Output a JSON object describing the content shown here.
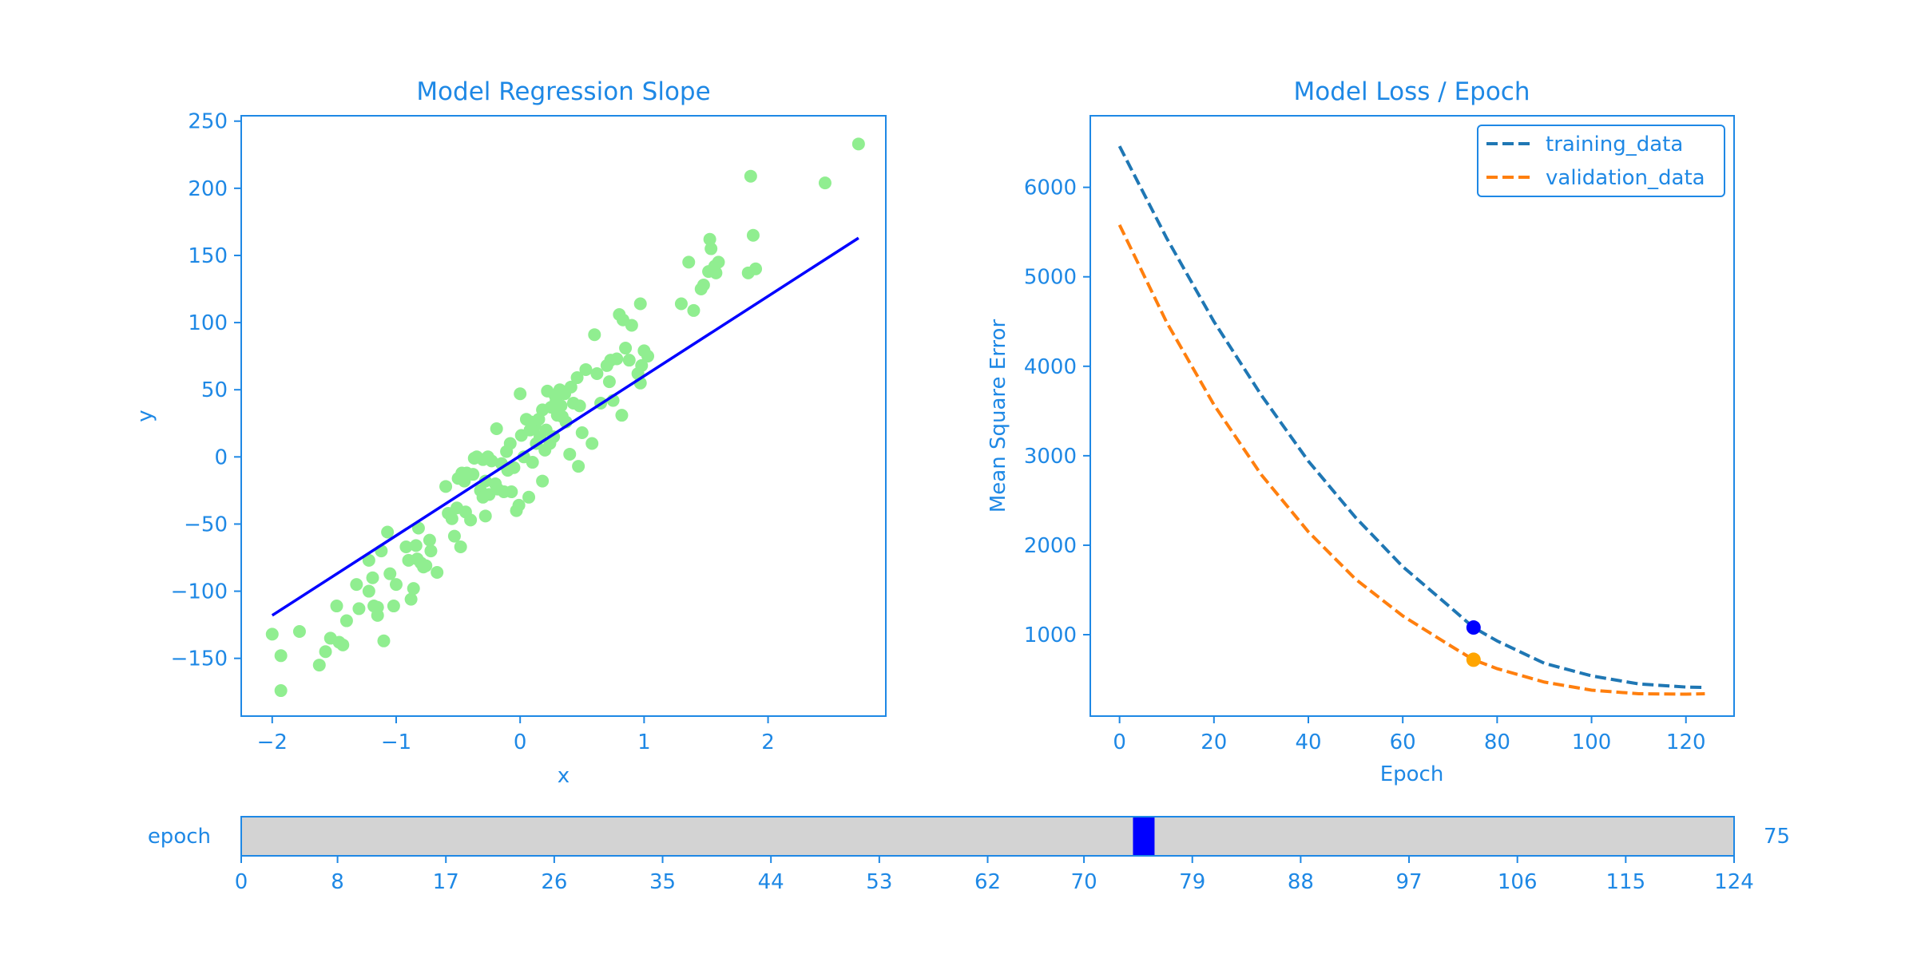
{
  "colors": {
    "foreground": "#1e88e5",
    "scatter_points": "#90ee90",
    "regression_line": "#0000ff",
    "training_line": "#1f77b4",
    "validation_line": "#ff7f0e",
    "training_marker": "#0000ff",
    "validation_marker": "#ffa500",
    "slider_track": "#d3d3d3",
    "slider_handle": "#0000ff"
  },
  "chart_data": [
    {
      "type": "scatter",
      "title": "Model Regression Slope",
      "xlabel": "x",
      "ylabel": "y",
      "xlim": [
        -2.25,
        2.95
      ],
      "ylim": [
        -193,
        254
      ],
      "xticks": [
        -2,
        -1,
        0,
        1,
        2
      ],
      "xtick_labels": [
        "−2",
        "−1",
        "0",
        "1",
        "2"
      ],
      "yticks": [
        -150,
        -100,
        -50,
        0,
        50,
        100,
        150,
        200,
        250
      ],
      "ytick_labels": [
        "−150",
        "−100",
        "−50",
        "0",
        "50",
        "100",
        "150",
        "200",
        "250"
      ],
      "grid": false,
      "points": [
        [
          -2.0,
          -132
        ],
        [
          -1.93,
          -148
        ],
        [
          -1.93,
          -174
        ],
        [
          -1.78,
          -130
        ],
        [
          -1.62,
          -155
        ],
        [
          -1.57,
          -145
        ],
        [
          -1.53,
          -135
        ],
        [
          -1.48,
          -111
        ],
        [
          -1.46,
          -138
        ],
        [
          -1.43,
          -140
        ],
        [
          -1.4,
          -122
        ],
        [
          -1.32,
          -95
        ],
        [
          -1.3,
          -113
        ],
        [
          -1.22,
          -77
        ],
        [
          -1.22,
          -100
        ],
        [
          -1.19,
          -90
        ],
        [
          -1.18,
          -111
        ],
        [
          -1.15,
          -118
        ],
        [
          -1.15,
          -112
        ],
        [
          -1.12,
          -70
        ],
        [
          -1.1,
          -137
        ],
        [
          -1.07,
          -56
        ],
        [
          -1.05,
          -87
        ],
        [
          -1.02,
          -111
        ],
        [
          -1.0,
          -95
        ],
        [
          -0.92,
          -67
        ],
        [
          -0.9,
          -77
        ],
        [
          -0.88,
          -106
        ],
        [
          -0.86,
          -98
        ],
        [
          -0.84,
          -66
        ],
        [
          -0.83,
          -76
        ],
        [
          -0.82,
          -53
        ],
        [
          -0.8,
          -79
        ],
        [
          -0.78,
          -82
        ],
        [
          -0.76,
          -81
        ],
        [
          -0.73,
          -62
        ],
        [
          -0.72,
          -70
        ],
        [
          -0.67,
          -86
        ],
        [
          -0.6,
          -22
        ],
        [
          -0.58,
          -42
        ],
        [
          -0.55,
          -46
        ],
        [
          -0.53,
          -59
        ],
        [
          -0.51,
          -38
        ],
        [
          -0.5,
          -16
        ],
        [
          -0.48,
          -67
        ],
        [
          -0.47,
          -12
        ],
        [
          -0.45,
          -18
        ],
        [
          -0.44,
          -41
        ],
        [
          -0.43,
          -12
        ],
        [
          -0.4,
          -47
        ],
        [
          -0.38,
          -13
        ],
        [
          -0.37,
          -1
        ],
        [
          -0.35,
          0
        ],
        [
          -0.32,
          -25
        ],
        [
          -0.3,
          -2
        ],
        [
          -0.3,
          -30
        ],
        [
          -0.28,
          -18
        ],
        [
          -0.28,
          -44
        ],
        [
          -0.26,
          0
        ],
        [
          -0.25,
          -28
        ],
        [
          -0.23,
          -3
        ],
        [
          -0.2,
          -20
        ],
        [
          -0.19,
          21
        ],
        [
          -0.18,
          -24
        ],
        [
          -0.15,
          -5
        ],
        [
          -0.13,
          -26
        ],
        [
          -0.11,
          4
        ],
        [
          -0.1,
          -10
        ],
        [
          -0.08,
          10
        ],
        [
          -0.07,
          -26
        ],
        [
          -0.05,
          -8
        ],
        [
          -0.03,
          -40
        ],
        [
          -0.01,
          -36
        ],
        [
          0.0,
          47
        ],
        [
          0.01,
          16
        ],
        [
          0.03,
          0
        ],
        [
          0.05,
          28
        ],
        [
          0.07,
          -30
        ],
        [
          0.08,
          20
        ],
        [
          0.09,
          26
        ],
        [
          0.1,
          -4
        ],
        [
          0.12,
          23
        ],
        [
          0.13,
          10
        ],
        [
          0.15,
          28
        ],
        [
          0.16,
          15
        ],
        [
          0.18,
          -18
        ],
        [
          0.18,
          35
        ],
        [
          0.2,
          5
        ],
        [
          0.21,
          20
        ],
        [
          0.22,
          49
        ],
        [
          0.24,
          10
        ],
        [
          0.25,
          37
        ],
        [
          0.27,
          15
        ],
        [
          0.28,
          46
        ],
        [
          0.29,
          42
        ],
        [
          0.3,
          31
        ],
        [
          0.32,
          50
        ],
        [
          0.33,
          38
        ],
        [
          0.34,
          30
        ],
        [
          0.36,
          47
        ],
        [
          0.37,
          26
        ],
        [
          0.4,
          2
        ],
        [
          0.41,
          52
        ],
        [
          0.43,
          40
        ],
        [
          0.46,
          59
        ],
        [
          0.47,
          -7
        ],
        [
          0.48,
          38
        ],
        [
          0.5,
          18
        ],
        [
          0.53,
          65
        ],
        [
          0.58,
          10
        ],
        [
          0.6,
          91
        ],
        [
          0.62,
          62
        ],
        [
          0.65,
          40
        ],
        [
          0.7,
          68
        ],
        [
          0.72,
          56
        ],
        [
          0.73,
          72
        ],
        [
          0.75,
          42
        ],
        [
          0.78,
          73
        ],
        [
          0.8,
          106
        ],
        [
          0.82,
          31
        ],
        [
          0.83,
          102
        ],
        [
          0.85,
          81
        ],
        [
          0.88,
          72
        ],
        [
          0.9,
          98
        ],
        [
          0.95,
          62
        ],
        [
          0.97,
          55
        ],
        [
          0.97,
          114
        ],
        [
          0.98,
          68
        ],
        [
          1.0,
          79
        ],
        [
          1.03,
          75
        ],
        [
          1.3,
          114
        ],
        [
          1.36,
          145
        ],
        [
          1.4,
          109
        ],
        [
          1.46,
          125
        ],
        [
          1.48,
          128
        ],
        [
          1.52,
          138
        ],
        [
          1.53,
          162
        ],
        [
          1.54,
          155
        ],
        [
          1.57,
          142
        ],
        [
          1.58,
          137
        ],
        [
          1.6,
          145
        ],
        [
          1.84,
          137
        ],
        [
          1.86,
          209
        ],
        [
          1.88,
          165
        ],
        [
          1.9,
          140
        ],
        [
          2.46,
          204
        ],
        [
          2.73,
          233
        ]
      ],
      "line": {
        "x": [
          -2.0,
          2.73
        ],
        "y": [
          -118,
          163
        ]
      }
    },
    {
      "type": "line",
      "title": "Model Loss / Epoch",
      "xlabel": "Epoch",
      "ylabel": "Mean Square Error",
      "xlim": [
        -6.2,
        130.2
      ],
      "ylim": [
        90,
        6800
      ],
      "xticks": [
        0,
        20,
        40,
        60,
        80,
        100,
        120
      ],
      "yticks": [
        1000,
        2000,
        3000,
        4000,
        5000,
        6000
      ],
      "grid": false,
      "legend_position": "top-right",
      "series": [
        {
          "name": "training_data",
          "x": [
            0,
            10,
            20,
            30,
            40,
            50,
            60,
            70,
            75,
            80,
            90,
            100,
            110,
            120,
            124
          ],
          "y": [
            6460,
            5430,
            4500,
            3680,
            2940,
            2310,
            1760,
            1310,
            1080,
            930,
            680,
            540,
            450,
            415,
            410
          ]
        },
        {
          "name": "validation_data",
          "x": [
            0,
            10,
            20,
            30,
            40,
            50,
            60,
            70,
            75,
            80,
            90,
            100,
            110,
            120,
            124
          ],
          "y": [
            5580,
            4490,
            3570,
            2790,
            2150,
            1620,
            1210,
            880,
            720,
            620,
            470,
            380,
            340,
            335,
            340
          ]
        }
      ],
      "markers": [
        {
          "series": "training_data",
          "x": 75,
          "y": 1080
        },
        {
          "series": "validation_data",
          "x": 75,
          "y": 720
        }
      ]
    }
  ],
  "slider": {
    "label": "epoch",
    "value": 75,
    "value_label": "75",
    "min": 0,
    "max": 124,
    "ticks": [
      0,
      8,
      17,
      26,
      35,
      44,
      53,
      62,
      70,
      79,
      88,
      97,
      106,
      115,
      124
    ]
  }
}
